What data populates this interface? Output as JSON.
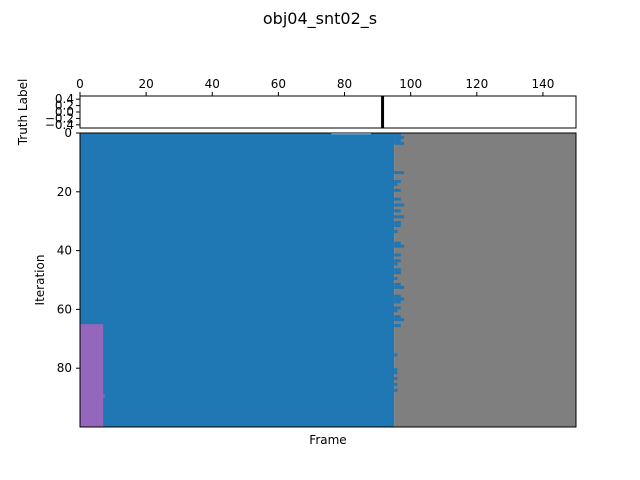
{
  "chart_data": [
    {
      "type": "line",
      "title": "obj04_snt02_s",
      "xlabel": "",
      "ylabel": "Truth Label",
      "xlim": [
        0,
        150
      ],
      "ylim": [
        -0.5,
        0.5
      ],
      "x_ticks": [
        "0",
        "20",
        "40",
        "60",
        "80",
        "100",
        "120",
        "140"
      ],
      "y_ticks": [
        "−0.4",
        "−0.2",
        "0.0",
        "0.2",
        "0.4"
      ],
      "x_axis_position": "top",
      "truth_marker_x": 91.5,
      "truth_marker_color": "#000000"
    },
    {
      "type": "heatmap",
      "xlabel": "Frame",
      "ylabel": "Iteration",
      "xlim": [
        0,
        150
      ],
      "ylim": [
        100,
        0
      ],
      "y_ticks": [
        "0",
        "20",
        "40",
        "60",
        "80"
      ],
      "colors": {
        "predicted": "#1f77b4",
        "other_class": "#9467bd",
        "no_prediction": "#7f7f7f"
      },
      "regions": [
        {
          "label": "no_prediction",
          "x0": 95,
          "x1": 150,
          "y0": 0,
          "y1": 100
        },
        {
          "label": "predicted",
          "x0": 0,
          "x1": 95,
          "y0": 0,
          "y1": 100
        },
        {
          "label": "other_class",
          "x0": 0,
          "x1": 7,
          "y0": 65,
          "y1": 100
        }
      ],
      "row_ends": [
        {
          "iteration": 0,
          "end": 97
        },
        {
          "iteration": 1,
          "end": 98
        },
        {
          "iteration": 2,
          "end": 97
        },
        {
          "iteration": 3,
          "end": 98
        },
        {
          "iteration": 13,
          "end": 98
        },
        {
          "iteration": 16,
          "end": 97
        },
        {
          "iteration": 17,
          "end": 96
        },
        {
          "iteration": 19,
          "end": 97
        },
        {
          "iteration": 22,
          "end": 97
        },
        {
          "iteration": 24,
          "end": 98
        },
        {
          "iteration": 26,
          "end": 97
        },
        {
          "iteration": 28,
          "end": 98
        },
        {
          "iteration": 30,
          "end": 97
        },
        {
          "iteration": 31,
          "end": 97
        },
        {
          "iteration": 33,
          "end": 96
        },
        {
          "iteration": 37,
          "end": 97
        },
        {
          "iteration": 38,
          "end": 98
        },
        {
          "iteration": 41,
          "end": 97
        },
        {
          "iteration": 43,
          "end": 97
        },
        {
          "iteration": 44,
          "end": 96
        },
        {
          "iteration": 46,
          "end": 97
        },
        {
          "iteration": 47,
          "end": 97
        },
        {
          "iteration": 49,
          "end": 96
        },
        {
          "iteration": 51,
          "end": 97
        },
        {
          "iteration": 52,
          "end": 98
        },
        {
          "iteration": 55,
          "end": 97
        },
        {
          "iteration": 56,
          "end": 98
        },
        {
          "iteration": 57,
          "end": 97
        },
        {
          "iteration": 59,
          "end": 97
        },
        {
          "iteration": 60,
          "end": 96
        },
        {
          "iteration": 62,
          "end": 97
        },
        {
          "iteration": 63,
          "end": 98
        },
        {
          "iteration": 65,
          "end": 97
        },
        {
          "iteration": 75,
          "end": 96
        },
        {
          "iteration": 80,
          "end": 96
        },
        {
          "iteration": 81,
          "end": 96
        },
        {
          "iteration": 83,
          "end": 96
        },
        {
          "iteration": 85,
          "end": 96
        },
        {
          "iteration": 87,
          "end": 96
        }
      ],
      "other_class_extensions": [
        {
          "iteration": 89,
          "end": 7.5
        }
      ],
      "header_notch": {
        "iteration": 0,
        "x0": 76,
        "x1": 88
      }
    }
  ]
}
